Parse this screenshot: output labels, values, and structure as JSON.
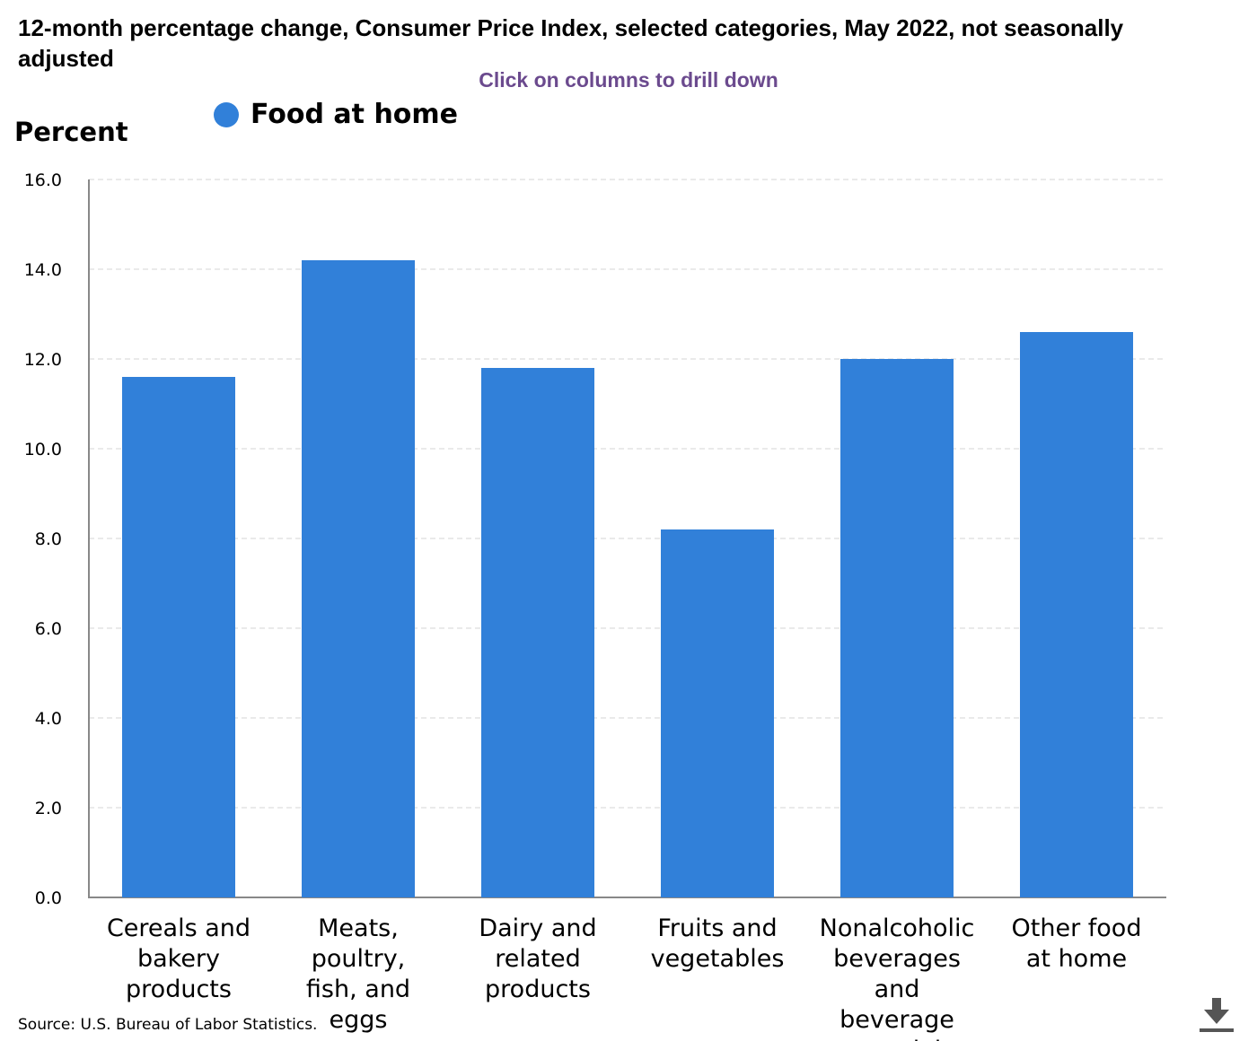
{
  "title": "12-month percentage change, Consumer Price Index, selected categories, May 2022, not seasonally adjusted",
  "subtitle": "Click on columns to drill down",
  "source": "Source: U.S. Bureau of Labor Statistics.",
  "download_icon": "download-icon",
  "colors": {
    "bar": "#3180d9",
    "subtitle": "#6b4a8e",
    "grid": "#d4d4d4",
    "axis": "#888888"
  },
  "chart_data": {
    "type": "bar",
    "title": "12-month percentage change, Consumer Price Index, selected categories, May 2022, not seasonally adjusted",
    "ylabel": "Percent",
    "xlabel": "",
    "ylim": [
      0,
      16
    ],
    "yticks": [
      "0.0",
      "2.0",
      "4.0",
      "6.0",
      "8.0",
      "10.0",
      "12.0",
      "14.0",
      "16.0"
    ],
    "grid": true,
    "legend_position": "top-left",
    "categories": [
      [
        "Cereals and",
        "bakery",
        "products"
      ],
      [
        "Meats,",
        "poultry,",
        "fish, and",
        "eggs"
      ],
      [
        "Dairy and",
        "related",
        "products"
      ],
      [
        "Fruits and",
        "vegetables"
      ],
      [
        "Nonalcoholic",
        "beverages",
        "and",
        "beverage",
        "materials"
      ],
      [
        "Other food",
        "at home"
      ]
    ],
    "series": [
      {
        "name": "Food at home",
        "values": [
          11.6,
          14.2,
          11.8,
          8.2,
          12.0,
          12.6
        ]
      }
    ]
  }
}
